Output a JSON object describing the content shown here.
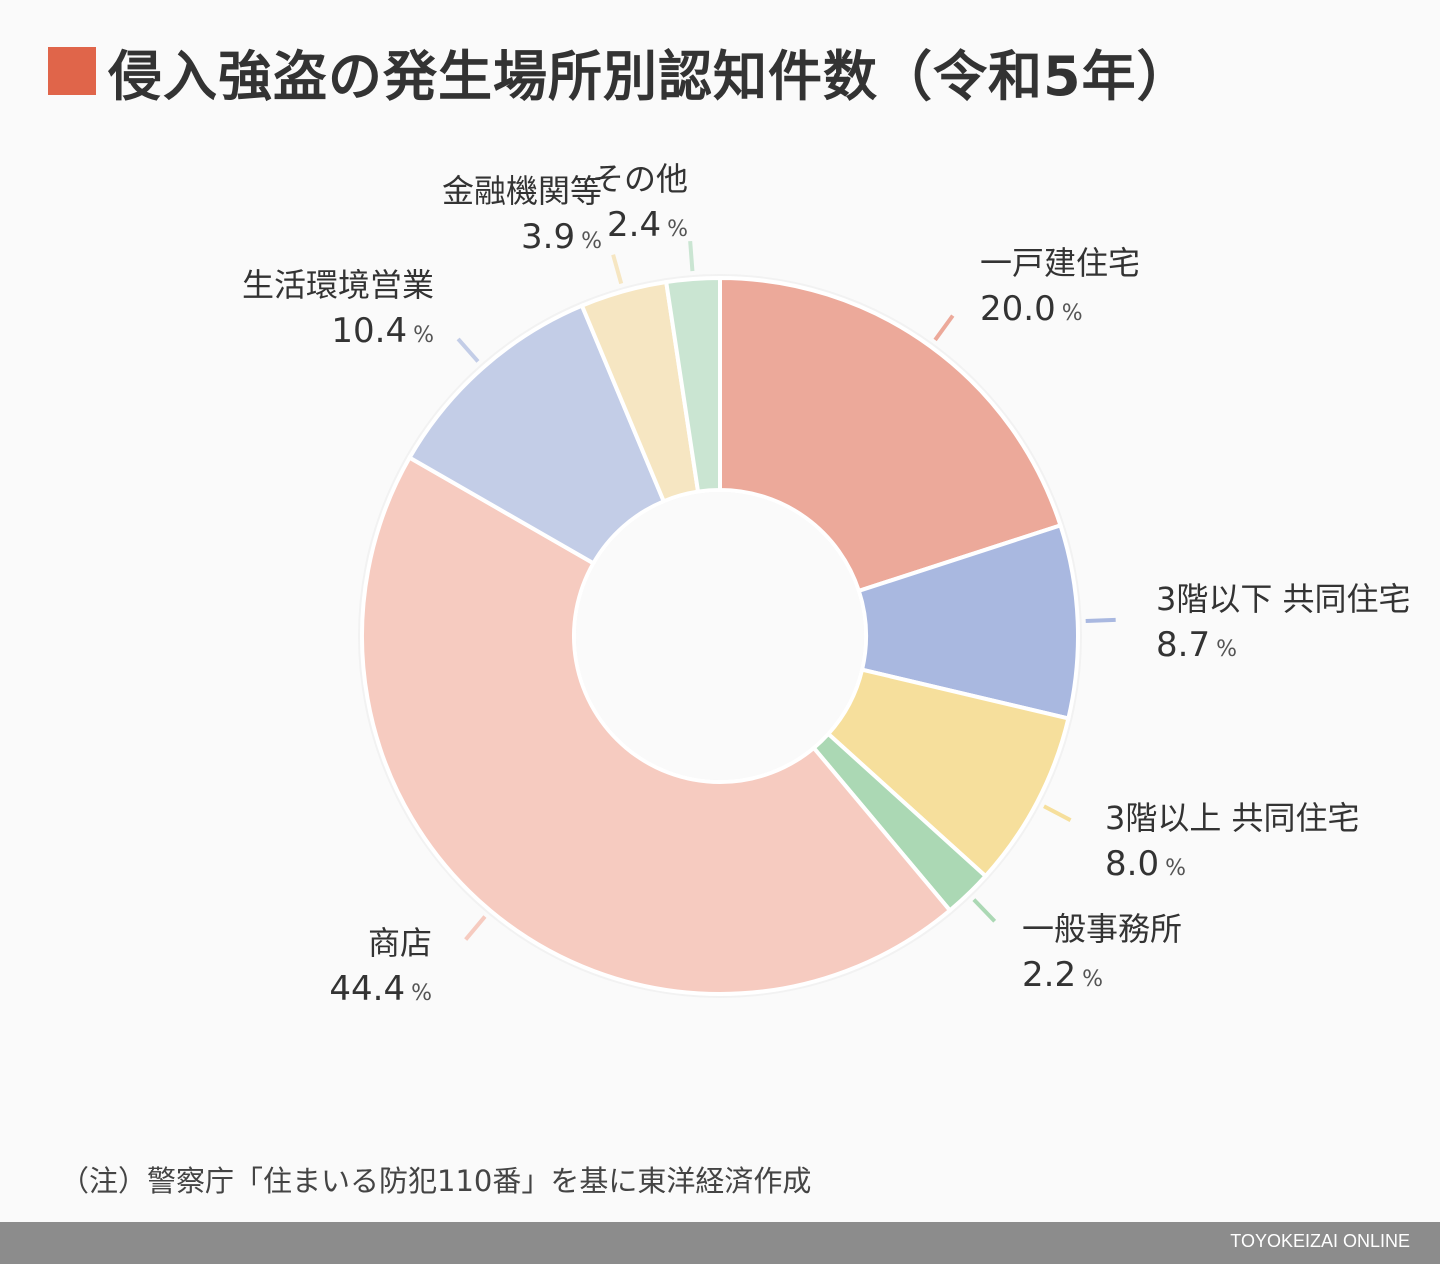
{
  "title": "侵入強盗の発生場所別認知件数（令和5年）",
  "note": "（注）警察庁「住まいる防犯110番」を基に東洋経済作成",
  "brand": "TOYOKEIZAI ONLINE",
  "colors": {
    "title_mark": "#e0654a",
    "footer": "#8c8c8c"
  },
  "chart_data": {
    "type": "pie",
    "style": "donut",
    "unit": "%",
    "slices": [
      {
        "label": "一戸建住宅",
        "value": 20.0,
        "value_text": "20.0",
        "color": "#eca99a"
      },
      {
        "label": "3階以下 共同住宅",
        "value": 8.7,
        "value_text": "8.7",
        "color": "#a9b8e0"
      },
      {
        "label": "3階以上 共同住宅",
        "value": 8.0,
        "value_text": "8.0",
        "color": "#f6df9c"
      },
      {
        "label": "一般事務所",
        "value": 2.2,
        "value_text": "2.2",
        "color": "#abd8b4"
      },
      {
        "label": "商店",
        "value": 44.4,
        "value_text": "44.4",
        "color": "#f6cbc0"
      },
      {
        "label": "生活環境営業",
        "value": 10.4,
        "value_text": "10.4",
        "color": "#c3cde7"
      },
      {
        "label": "金融機関等",
        "value": 3.9,
        "value_text": "3.9",
        "color": "#f6e6c2"
      },
      {
        "label": "その他",
        "value": 2.4,
        "value_text": "2.4",
        "color": "#cae5d2"
      }
    ]
  }
}
